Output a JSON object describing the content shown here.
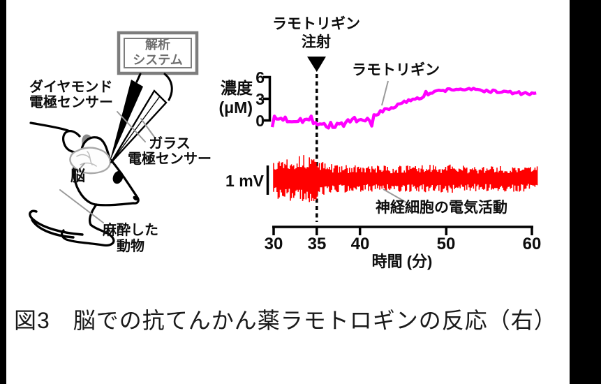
{
  "figure": {
    "caption": "図3　脳での抗てんかん薬ラモトロギンの反応（右）"
  },
  "diagram": {
    "analysis_box": {
      "line1": "解析",
      "line2": "システム"
    },
    "labels": {
      "diamond_electrode": {
        "line1": "ダイヤモンド",
        "line2": "電極センサー"
      },
      "glass_electrode": {
        "line1": "ガラス",
        "line2": "電極センサー"
      },
      "brain": "脳",
      "animal": {
        "line1": "麻酔した",
        "line2": "動物"
      }
    }
  },
  "chart": {
    "injection": {
      "line1": "ラモトリギン",
      "line2": "注射"
    },
    "y_axis": {
      "label_line1": "濃度",
      "label_line2": "(μM)",
      "ticks": [
        "6",
        "3",
        "0"
      ]
    },
    "trace1_label": "ラモトリギン",
    "scale_bar_label": "1 mV",
    "trace2_label": "神経細胞の電気活動",
    "x_axis": {
      "tick_labels": [
        "30",
        "35",
        "40",
        "50",
        "60"
      ],
      "label": "時間 (分)"
    }
  },
  "chart_data": [
    {
      "type": "line",
      "name": "lamotrigine-concentration",
      "title": "ラモトリギン",
      "ylabel": "濃度 (μM)",
      "yticks": [
        0,
        3,
        6
      ],
      "ylim": [
        -1.5,
        6
      ],
      "xlabel": "時間 (分)",
      "xlim": [
        30,
        60
      ],
      "xticks": [
        30,
        35,
        40,
        50,
        60
      ],
      "x_minutes": [
        30,
        31,
        32,
        33,
        34,
        35,
        36,
        37,
        38,
        39,
        40,
        41,
        42,
        42.5,
        43,
        44,
        45,
        46,
        47,
        48,
        49,
        50,
        51,
        52,
        53,
        54,
        55,
        56,
        57,
        58,
        59,
        60
      ],
      "y_uM": [
        0.1,
        0.3,
        0.0,
        0.25,
        -0.05,
        -0.15,
        -0.7,
        -0.65,
        -0.45,
        -0.3,
        -0.15,
        0.1,
        0.5,
        1.35,
        1.5,
        1.9,
        2.4,
        2.9,
        3.3,
        3.7,
        4.0,
        4.2,
        4.3,
        4.3,
        4.25,
        4.15,
        4.05,
        3.95,
        3.9,
        3.8,
        3.7,
        3.6
      ],
      "noise_uM_early": 0.5,
      "noise_uM_late": 0.22,
      "color": "#ff00ff",
      "annotation": {
        "label": "ラモトリギン注射",
        "x_minute": 35
      }
    },
    {
      "type": "noise-band",
      "name": "neural-electrical-activity",
      "title": "神経細胞の電気活動",
      "scale_bar": {
        "label": "1 mV",
        "mv": 1
      },
      "x_minutes": [
        30,
        32,
        34,
        35,
        35.5,
        36,
        37,
        38,
        40,
        42,
        45,
        48,
        50,
        52,
        55,
        58,
        60
      ],
      "amplitude_mv_pp": [
        1.6,
        1.75,
        1.8,
        1.75,
        1.4,
        1.2,
        1.1,
        1.05,
        1.0,
        1.0,
        1.0,
        1.05,
        1.1,
        1.0,
        0.95,
        1.0,
        0.95
      ],
      "color": "#ff0000"
    }
  ]
}
